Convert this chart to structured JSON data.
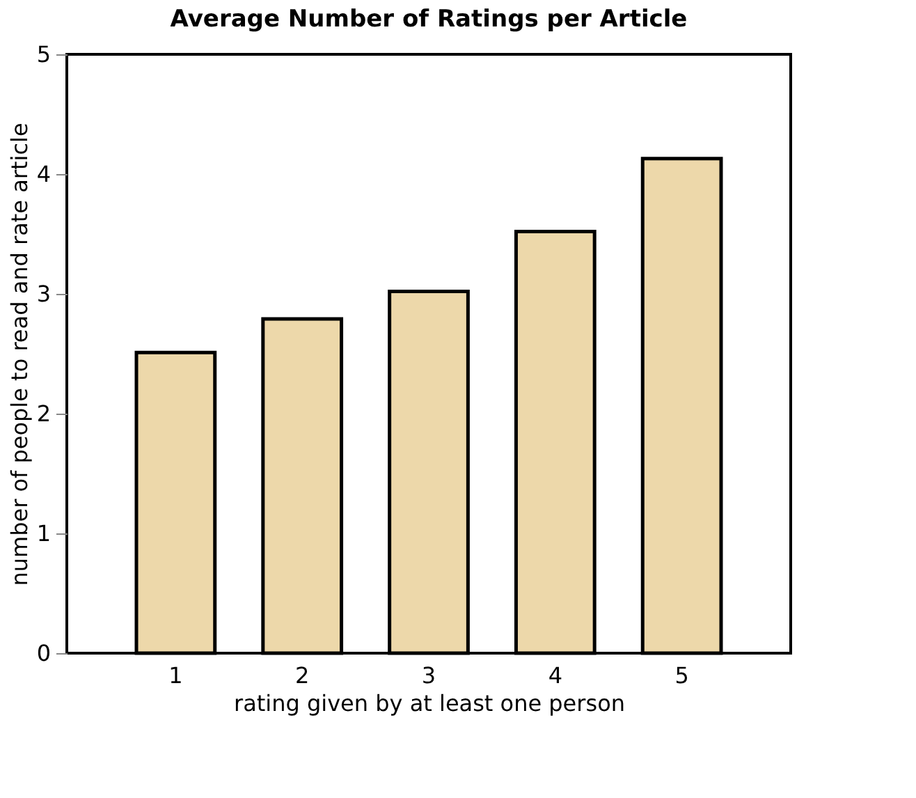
{
  "chart_data": {
    "type": "bar",
    "title": "Average Number of Ratings per Article",
    "xlabel": "rating given by at least one person",
    "ylabel": "number of people to read and rate article",
    "categories": [
      "1",
      "2",
      "3",
      "4",
      "5"
    ],
    "values": [
      2.51,
      2.79,
      3.02,
      3.52,
      4.13
    ],
    "color": "#edd8aa",
    "ylim": [
      0,
      5
    ],
    "yticks": [
      0,
      1,
      2,
      3,
      4,
      5
    ],
    "grid": false
  }
}
